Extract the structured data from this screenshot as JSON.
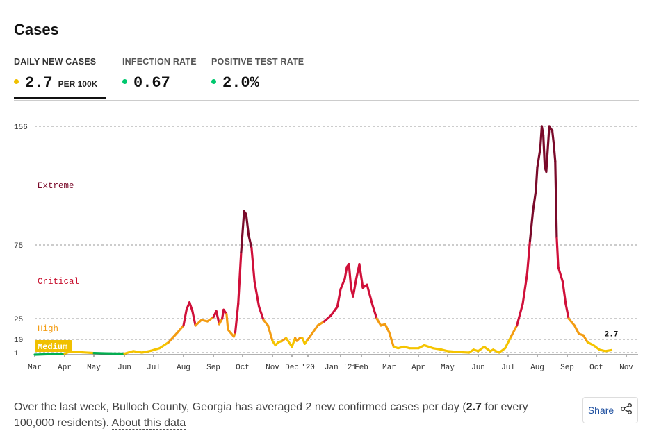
{
  "title": "Cases",
  "tabs": [
    {
      "label": "DAILY NEW CASES",
      "value": "2.7",
      "unit": "PER 100K",
      "dot_color": "#f0c000",
      "active": true
    },
    {
      "label": "INFECTION RATE",
      "value": "0.67",
      "dot_color": "#00c86e",
      "active": false
    },
    {
      "label": "POSITIVE TEST RATE",
      "value": "2.0%",
      "dot_color": "#00c86e",
      "active": false
    }
  ],
  "description": {
    "prefix": "Over the last week, Bulloch County, Georgia has averaged 2 new confirmed cases per day (",
    "highlight": "2.7",
    "suffix": " for every 100,000 residents). ",
    "link": "About this data"
  },
  "share": {
    "label": "Share",
    "icon": "share-icon"
  },
  "chart_data": {
    "type": "line",
    "y_ticks": [
      1,
      10,
      25,
      75,
      156
    ],
    "x_ticks": [
      "Mar",
      "Apr",
      "May",
      "Jun",
      "Jul",
      "Aug",
      "Sep",
      "Oct",
      "Nov",
      "Dec",
      "'20",
      "Jan '21",
      "Feb",
      "Mar",
      "Apr",
      "May",
      "Jun",
      "Jul",
      "Aug",
      "Sep",
      "Oct",
      "Nov"
    ],
    "zones": [
      {
        "label": "Extreme",
        "color": "#7a0a2a"
      },
      {
        "label": "Critical",
        "color": "#c8102e"
      },
      {
        "label": "High",
        "color": "#f39c12"
      },
      {
        "label": "Medium",
        "color": "#f0c000"
      }
    ],
    "zone_thresholds": [
      1,
      10,
      25,
      75
    ],
    "zone_colors": {
      "low": "#00b050",
      "medium": "#f5c400",
      "high": "#f39c12",
      "critical": "#d0103a",
      "extreme": "#7a0a2a"
    },
    "last_value_label": "2.7",
    "series": [
      {
        "values": [
          [
            0.0,
            0
          ],
          [
            1.0,
            0.5
          ],
          [
            1.2,
            1.8
          ],
          [
            1.6,
            1.2
          ],
          [
            2.0,
            0.8
          ],
          [
            2.5,
            0.6
          ],
          [
            3.0,
            0.5
          ],
          [
            3.3,
            2.0
          ],
          [
            3.6,
            1.0
          ],
          [
            3.9,
            2.2
          ],
          [
            4.2,
            4
          ],
          [
            4.5,
            8
          ],
          [
            4.8,
            15
          ],
          [
            5.0,
            20
          ],
          [
            5.1,
            31
          ],
          [
            5.2,
            36
          ],
          [
            5.3,
            30
          ],
          [
            5.4,
            20
          ],
          [
            5.6,
            24
          ],
          [
            5.8,
            23
          ],
          [
            6.0,
            26
          ],
          [
            6.1,
            30
          ],
          [
            6.2,
            21
          ],
          [
            6.3,
            25
          ],
          [
            6.35,
            31
          ],
          [
            6.45,
            28
          ],
          [
            6.5,
            17
          ],
          [
            6.7,
            12
          ],
          [
            6.75,
            15
          ],
          [
            6.85,
            35
          ],
          [
            6.95,
            70
          ],
          [
            7.05,
            98
          ],
          [
            7.12,
            96
          ],
          [
            7.2,
            82
          ],
          [
            7.3,
            73
          ],
          [
            7.4,
            50
          ],
          [
            7.55,
            33
          ],
          [
            7.7,
            24
          ],
          [
            7.85,
            20
          ],
          [
            8.0,
            9
          ],
          [
            8.15,
            6
          ],
          [
            8.3,
            8
          ],
          [
            8.5,
            9
          ],
          [
            8.7,
            11
          ],
          [
            8.9,
            7
          ],
          [
            9.0,
            5
          ],
          [
            9.2,
            11
          ],
          [
            9.3,
            9
          ],
          [
            9.5,
            11
          ],
          [
            9.65,
            11
          ],
          [
            9.8,
            7
          ],
          [
            10.0,
            10
          ],
          [
            10.3,
            20
          ],
          [
            10.5,
            23
          ],
          [
            10.7,
            27
          ],
          [
            10.9,
            33
          ],
          [
            11.0,
            45
          ],
          [
            11.2,
            52
          ],
          [
            11.3,
            60
          ],
          [
            11.4,
            62
          ],
          [
            11.5,
            46
          ],
          [
            11.6,
            40
          ],
          [
            11.75,
            52
          ],
          [
            11.9,
            62
          ],
          [
            12.05,
            46
          ],
          [
            12.2,
            48
          ],
          [
            12.4,
            34
          ],
          [
            12.55,
            25
          ],
          [
            12.7,
            20
          ],
          [
            12.85,
            21
          ],
          [
            13.0,
            15
          ],
          [
            13.15,
            5
          ],
          [
            13.3,
            4
          ],
          [
            13.5,
            5
          ],
          [
            13.7,
            4
          ],
          [
            14.0,
            4
          ],
          [
            14.2,
            6
          ],
          [
            14.5,
            4
          ],
          [
            14.8,
            3
          ],
          [
            15.0,
            2
          ],
          [
            15.3,
            1.5
          ],
          [
            15.5,
            1.2
          ],
          [
            15.7,
            1
          ],
          [
            15.85,
            3
          ],
          [
            16.0,
            2
          ],
          [
            16.2,
            5
          ],
          [
            16.4,
            2
          ],
          [
            16.5,
            3
          ],
          [
            16.7,
            1
          ],
          [
            16.9,
            4
          ],
          [
            17.1,
            12
          ],
          [
            17.3,
            20
          ],
          [
            17.5,
            35
          ],
          [
            17.65,
            55
          ],
          [
            17.75,
            78
          ],
          [
            17.85,
            98
          ],
          [
            17.95,
            112
          ],
          [
            18.0,
            128
          ],
          [
            18.1,
            141
          ],
          [
            18.15,
            156
          ],
          [
            18.2,
            150
          ],
          [
            18.25,
            128
          ],
          [
            18.3,
            125
          ],
          [
            18.4,
            156
          ],
          [
            18.5,
            153
          ],
          [
            18.55,
            144
          ],
          [
            18.6,
            132
          ],
          [
            18.65,
            80
          ],
          [
            18.7,
            60
          ],
          [
            18.85,
            50
          ],
          [
            18.95,
            35
          ],
          [
            19.05,
            25
          ],
          [
            19.25,
            20
          ],
          [
            19.4,
            14
          ],
          [
            19.55,
            13
          ],
          [
            19.7,
            8
          ],
          [
            19.9,
            6
          ],
          [
            20.1,
            3
          ],
          [
            20.3,
            2
          ],
          [
            20.5,
            2.7
          ]
        ]
      }
    ]
  }
}
